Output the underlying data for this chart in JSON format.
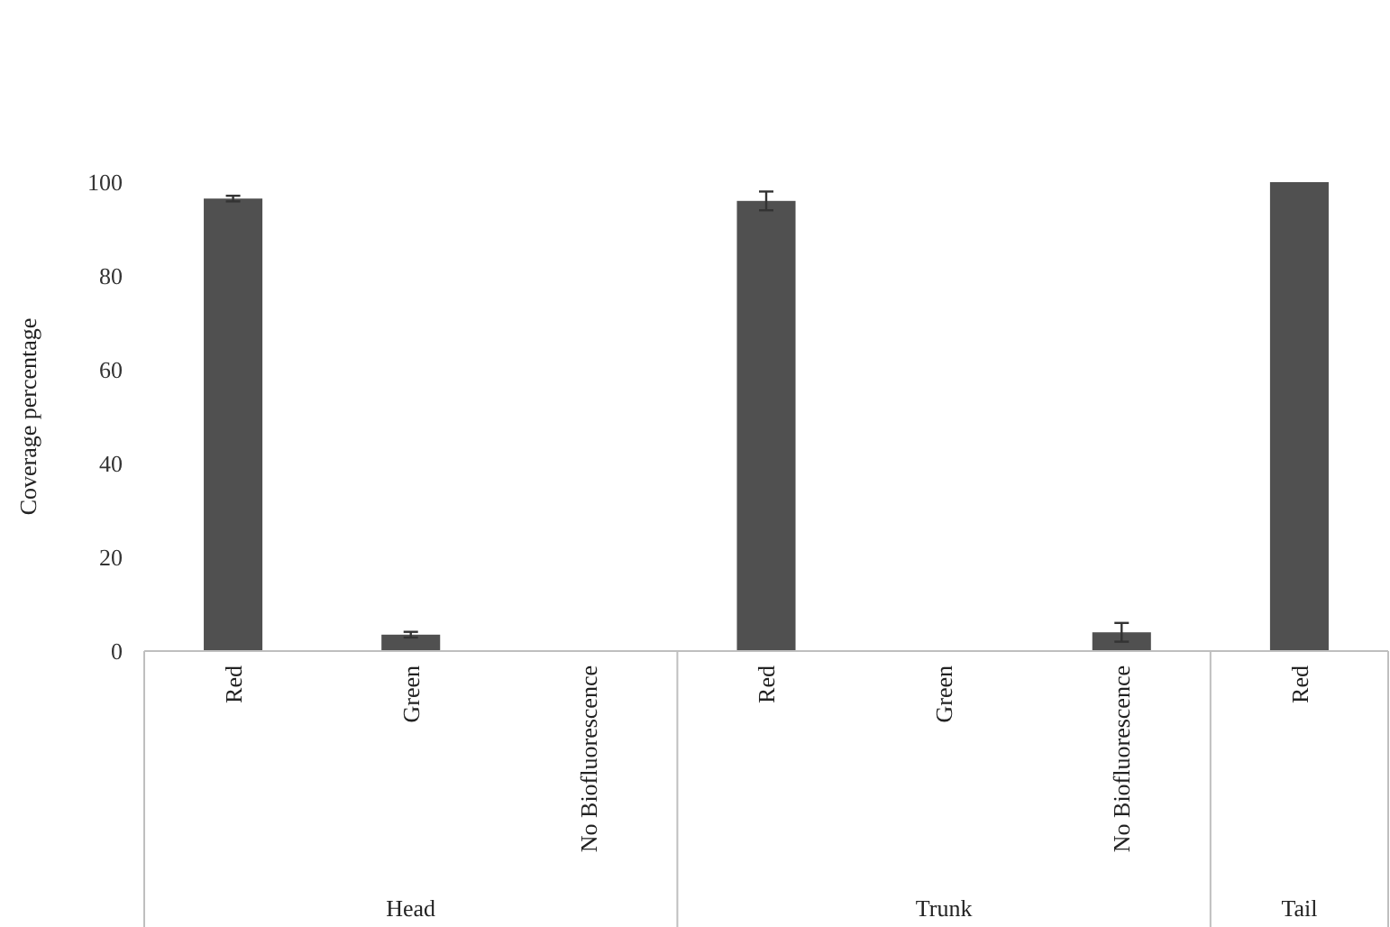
{
  "chart_data": {
    "type": "bar",
    "ylabel": "Coverage percentage",
    "categories": [
      "Red",
      "Green",
      "No Biofluorescence",
      "Red",
      "Green",
      "No Biofluorescence",
      "Red"
    ],
    "values": [
      96.5,
      3.5,
      0,
      96,
      0,
      4,
      100
    ],
    "errors": [
      0.6,
      0.6,
      null,
      2,
      null,
      2,
      null
    ],
    "color": "#505050",
    "ylim": [
      0,
      100
    ],
    "yticks": [
      0,
      20,
      40,
      60,
      80,
      100
    ],
    "grid": false,
    "annotations": [
      "Head",
      "Trunk",
      "Tail"
    ]
  }
}
